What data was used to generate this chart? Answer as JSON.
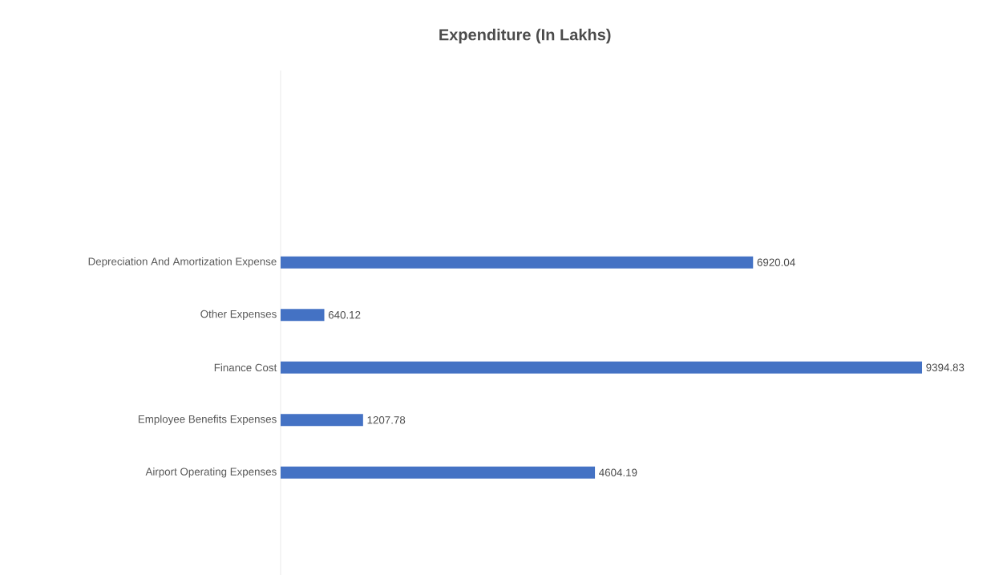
{
  "chart_data": {
    "type": "bar",
    "orientation": "horizontal",
    "title": "Expenditure (In Lakhs)",
    "categories": [
      "Depreciation And Amortization Expense",
      "Other Expenses",
      "Finance Cost",
      "Employee Benefits Expenses",
      "Airport Operating Expenses"
    ],
    "values": [
      6920.04,
      640.12,
      9394.83,
      1207.78,
      4604.19
    ],
    "value_labels": [
      "6920.04",
      "640.12",
      "9394.83",
      "1207.78",
      "4604.19"
    ],
    "color": "#4472c4"
  }
}
